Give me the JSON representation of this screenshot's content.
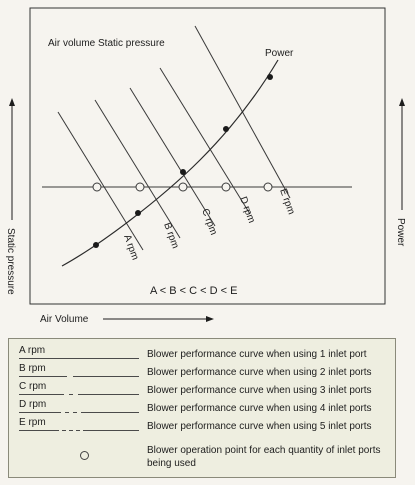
{
  "diagram": {
    "inner_title": "Air volume Static pressure",
    "power_curve_label": "Power",
    "rpm_labels": [
      "A rpm",
      "B rpm",
      "C rpm",
      "D rpm",
      "E rpm"
    ],
    "order_text": "A < B < C < D < E",
    "left_axis_label": "Static pressure",
    "right_axis_label": "Power",
    "bottom_axis_label": "Air Volume"
  },
  "legend": {
    "rows": [
      {
        "code": "A rpm",
        "description": "Blower performance curve when using 1 inlet port"
      },
      {
        "code": "B rpm",
        "description": "Blower performance curve when using 2 inlet ports"
      },
      {
        "code": "C rpm",
        "description": "Blower performance curve when using 3 inlet ports"
      },
      {
        "code": "D rpm",
        "description": "Blower performance curve when using 4 inlet ports"
      },
      {
        "code": "E rpm",
        "description": "Blower performance curve when using 5 inlet ports"
      }
    ],
    "operation_point_note": "Blower operation point for each quantity of inlet ports being used"
  }
}
